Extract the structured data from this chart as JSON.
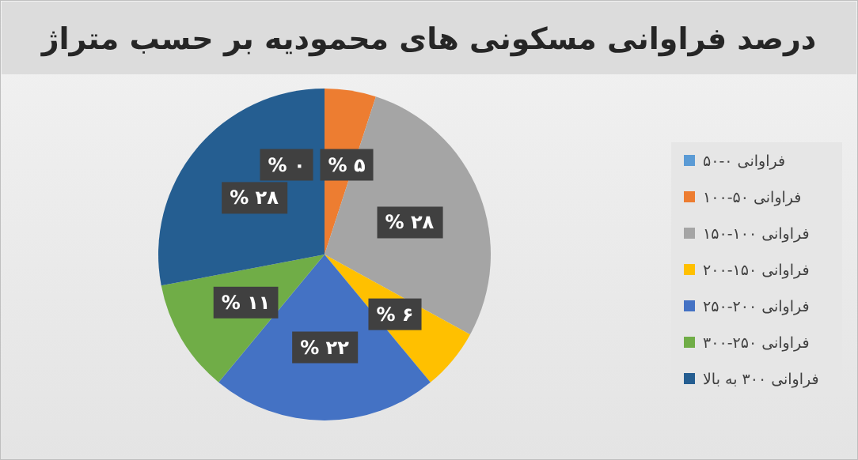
{
  "chart_data": {
    "type": "pie",
    "title": "درصد فراوانی مسکونی های محمودیه بر حسب متراژ",
    "categories": [
      "فراوانی ۰-۵۰",
      "فراوانی ۵۰-۱۰۰",
      "فراوانی ۱۰۰-۱۵۰",
      "فراوانی ۱۵۰-۲۰۰",
      "فراوانی ۲۰۰-۲۵۰",
      "فراوانی ۲۵۰-۳۰۰",
      "فراوانی ۳۰۰ به بالا"
    ],
    "values": [
      0,
      5,
      28,
      6,
      22,
      11,
      28
    ],
    "value_labels": [
      "۰ %",
      "۵ %",
      "۲۸ %",
      "۶ %",
      "۲۲ %",
      "۱۱ %",
      "۲۸ %"
    ],
    "colors": [
      "#5b9bd5",
      "#ed7d31",
      "#a5a5a5",
      "#ffc000",
      "#4472c4",
      "#70ad47",
      "#255e91"
    ],
    "legend": "right"
  }
}
